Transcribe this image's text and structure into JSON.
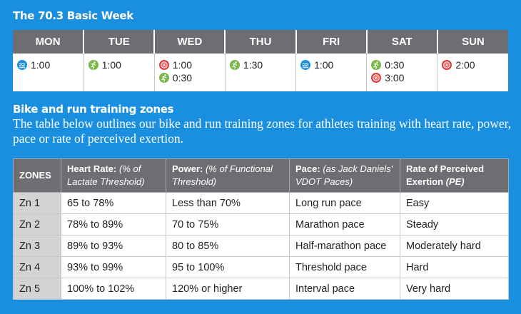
{
  "title": "The 70.3 Basic Week",
  "schedule": {
    "days": [
      {
        "day": "MON",
        "items": [
          "1:00"
        ]
      },
      {
        "day": "TUE",
        "items": [
          "1:00"
        ]
      },
      {
        "day": "WED",
        "items": [
          "1:00",
          "0:30"
        ]
      },
      {
        "day": "THU",
        "items": [
          "1:30"
        ]
      },
      {
        "day": "FRI",
        "items": [
          "1:00"
        ]
      },
      {
        "day": "SAT",
        "items": [
          "0:30",
          "3:00"
        ]
      },
      {
        "day": "SUN",
        "items": [
          "2:00"
        ]
      }
    ]
  },
  "zones_heading": "Bike and run training zones",
  "zones_description": "The table below outlines our bike and run training zones for athletes training with heart rate, power, pace or rate of perceived exertion.",
  "table": {
    "headers": [
      {
        "title": "ZONES"
      },
      {
        "title": "Heart Rate:",
        "note": "(% of Lactate Threshold)"
      },
      {
        "title": "Power:",
        "note": "(% of Functional Threshold)"
      },
      {
        "title": "Pace:",
        "note": "(as Jack Daniels' VDOT Paces)"
      },
      {
        "title": "Rate of Perceived Exertion",
        "note": "(PE)"
      }
    ],
    "rows": [
      [
        "Zn 1",
        "65 to 78%",
        "Less than 70%",
        "Long run pace",
        "Easy"
      ],
      [
        "Zn 2",
        "78% to 89%",
        "70 to 75%",
        "Marathon pace",
        "Steady"
      ],
      [
        "Zn 3",
        "89% to 93%",
        "80 to 85%",
        "Half-marathon pace",
        "Moderately hard"
      ],
      [
        "Zn 4",
        "93% to 99%",
        "95 to 100%",
        "Threshold pace",
        "Hard"
      ],
      [
        "Zn 5",
        "100% to 102%",
        "120% or higher",
        "Interval pace",
        "Very hard"
      ]
    ]
  }
}
